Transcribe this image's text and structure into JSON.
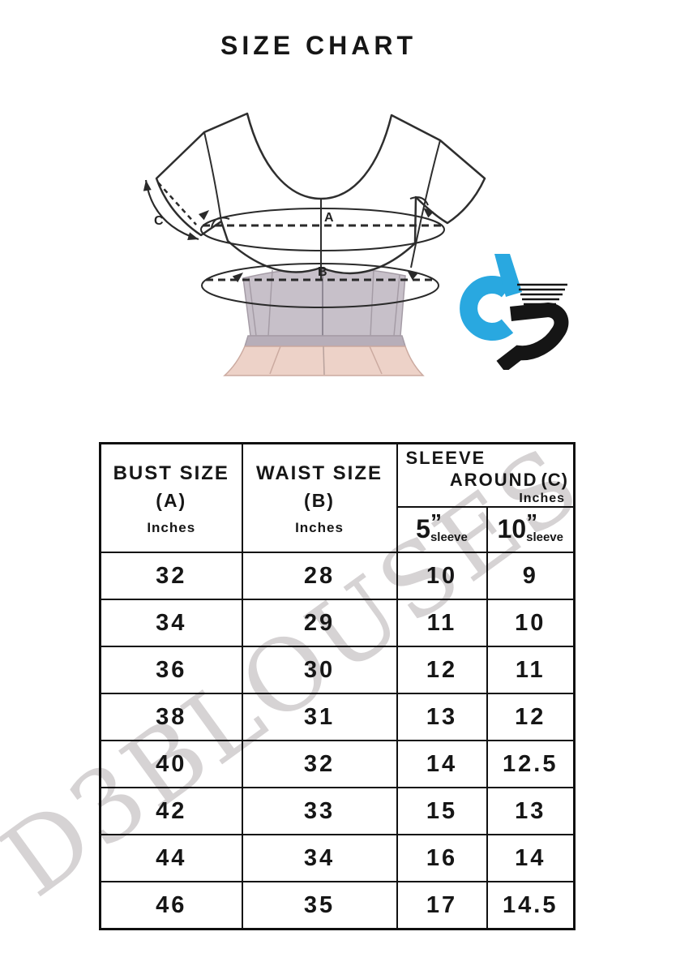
{
  "page": {
    "title": "SIZE CHART",
    "watermark": "D3BLOUSES",
    "background": "#ffffff"
  },
  "diagram": {
    "bust_label": "A",
    "waist_label": "B",
    "sleeve_label": "C"
  },
  "logo": {
    "monogram": "d3",
    "brand_blue": "#29a8e0",
    "brand_black": "#151515"
  },
  "table": {
    "col1": {
      "line1": "BUST SIZE",
      "line2": "(A)",
      "line3": "Inches"
    },
    "col2": {
      "line1": "WAIST SIZE",
      "line2": "(B)",
      "line3": "Inches"
    },
    "col3": {
      "line1": "SLEEVE",
      "line2": "AROUND",
      "c": "(C)",
      "line3": "Inches",
      "sub1": {
        "num": "5",
        "quote": "”",
        "word": "sleeve"
      },
      "sub2": {
        "num": "10",
        "quote": "”",
        "word": "sleeve"
      }
    }
  },
  "chart_data": {
    "type": "table",
    "title": "SIZE CHART",
    "columns": [
      "Bust Size (A) Inches",
      "Waist Size (B) Inches",
      "Sleeve Around (C) Inches - 5\" sleeve",
      "Sleeve Around (C) Inches - 10\" sleeve"
    ],
    "rows": [
      [
        32,
        28,
        10,
        9
      ],
      [
        34,
        29,
        11,
        10
      ],
      [
        36,
        30,
        12,
        11
      ],
      [
        38,
        31,
        13,
        12
      ],
      [
        40,
        32,
        14,
        12.5
      ],
      [
        42,
        33,
        15,
        13
      ],
      [
        44,
        34,
        16,
        14
      ],
      [
        46,
        35,
        17,
        14.5
      ]
    ]
  }
}
